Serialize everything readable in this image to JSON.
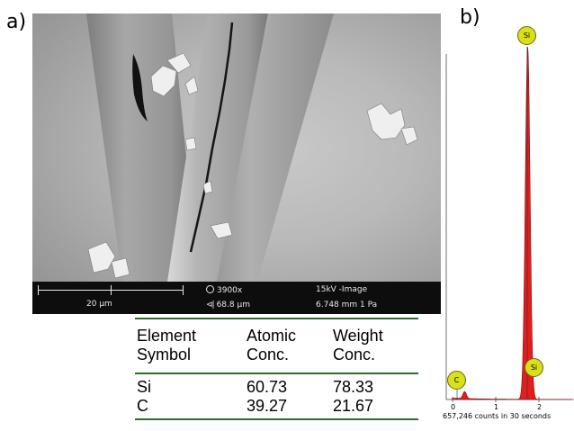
{
  "panels": {
    "a": "a)",
    "b": "b)"
  },
  "sem_bar": {
    "scale": "20 μm",
    "magnification": "3900x",
    "hfw": "68.8 μm",
    "detector": "15kV -Image",
    "working_distance": "6.748 mm   1 Pa"
  },
  "table": {
    "headers": [
      [
        "Element",
        "Atomic",
        "Weight"
      ],
      [
        "Symbol",
        "Conc.",
        "Conc."
      ]
    ],
    "rows": [
      [
        "Si",
        "60.73",
        "78.33"
      ],
      [
        "C",
        "39.27",
        "21.67"
      ]
    ]
  },
  "eds": {
    "peaks": [
      {
        "element": "Si",
        "energy_kev": 1.74,
        "relative_height": 1.0,
        "color": "#e21e1e"
      },
      {
        "element": "C",
        "energy_kev": 0.28,
        "relative_height": 0.02,
        "color": "#e21e1e"
      }
    ],
    "badge_labels": [
      "Si",
      "Si",
      "C"
    ],
    "x_ticks": [
      "0",
      "1",
      "2"
    ],
    "counts_text": "657,246 counts in 30 seconds"
  }
}
